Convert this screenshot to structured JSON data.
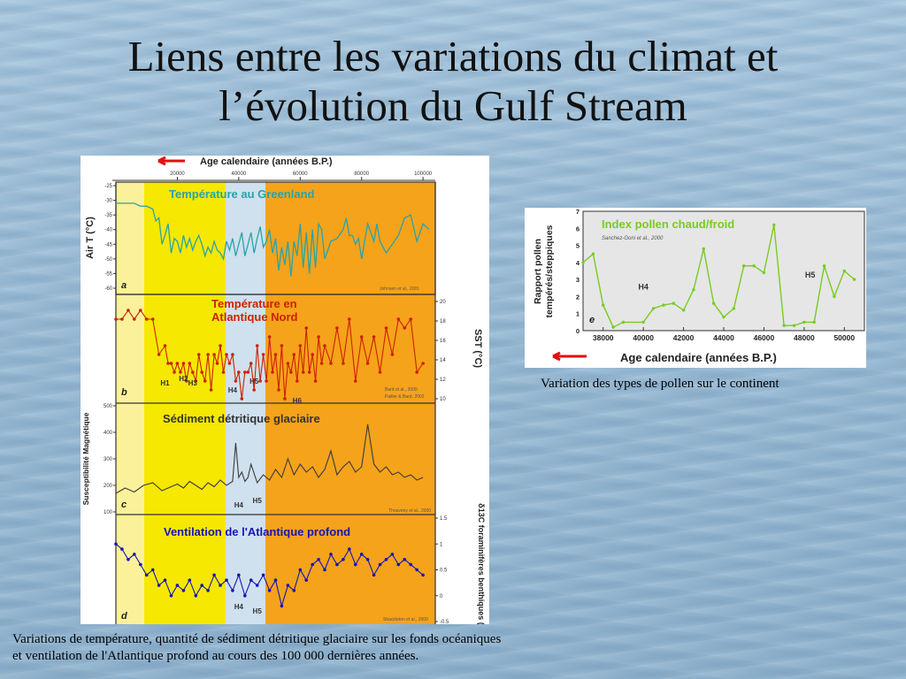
{
  "slide": {
    "title_line1": "Liens entre les variations du climat et",
    "title_line2": "l’évolution du Gulf Stream",
    "caption_pollen": "Variation des types de pollen sur le continent",
    "caption_main_line1": "Variations de température, quantité de sédiment détritique glaciaire sur les fonds océaniques",
    "caption_main_line2": "et ventilation de l'Atlantique profond au cours des 100 000 dernières années."
  },
  "colors": {
    "yellow": "#f6e800",
    "light_yellow": "#fbf19a",
    "blue_band": "#cfe0ee",
    "orange": "#f5a31a",
    "teal": "#2aa3a8",
    "red": "#cc2200",
    "dark": "#3a3a3a",
    "navy": "#1515b5",
    "green": "#77cc22",
    "arrow": "#e01010"
  },
  "chart_data": [
    {
      "type": "line",
      "x_axis_title": "Age calendaire (années B.P.)",
      "x_ticks": [
        "20000",
        "40000",
        "60000",
        "80000",
        "100000"
      ],
      "panels": [
        {
          "id": "a",
          "title": "Température au Greenland",
          "ylabel": "Air T (°C)",
          "yticks": [
            "-25",
            "-30",
            "-35",
            "-40",
            "-45",
            "-50",
            "-55",
            "-60"
          ],
          "ylim": [
            -60,
            -25
          ],
          "ref": "Johnsen et al., 2001",
          "series": {
            "x": [
              0,
              2,
              4,
              6,
              8,
              10,
              12,
              13,
              14,
              15,
              16,
              17,
              18,
              19,
              20,
              21,
              22,
              23,
              24,
              25,
              26,
              27,
              28,
              29,
              30,
              31,
              32,
              33,
              34,
              35,
              36,
              37,
              38,
              39,
              40,
              41,
              42,
              43,
              44,
              45,
              46,
              47,
              48,
              49,
              50,
              51,
              52,
              53,
              54,
              55,
              56,
              57,
              58,
              59,
              60,
              61,
              62,
              63,
              64,
              65,
              66,
              67,
              68,
              70,
              72,
              74,
              75,
              76,
              77,
              78,
              79,
              80,
              82,
              84,
              85,
              86,
              88,
              90,
              92,
              94,
              96,
              98,
              100,
              102
            ],
            "y": [
              -31,
              -31,
              -31,
              -31,
              -32,
              -32,
              -33,
              -37,
              -36,
              -45,
              -42,
              -38,
              -48,
              -43,
              -44,
              -48,
              -42,
              -46,
              -43,
              -47,
              -44,
              -42,
              -45,
              -49,
              -46,
              -48,
              -44,
              -47,
              -48,
              -50,
              -44,
              -47,
              -43,
              -49,
              -45,
              -41,
              -49,
              -45,
              -41,
              -48,
              -43,
              -39,
              -46,
              -44,
              -40,
              -48,
              -43,
              -54,
              -46,
              -52,
              -44,
              -56,
              -44,
              -49,
              -38,
              -53,
              -41,
              -55,
              -40,
              -53,
              -38,
              -40,
              -50,
              -44,
              -43,
              -40,
              -36,
              -42,
              -42,
              -45,
              -43,
              -50,
              -38,
              -44,
              -38,
              -44,
              -48,
              -45,
              -42,
              -36,
              -35,
              -44,
              -38,
              -40
            ]
          }
        },
        {
          "id": "b",
          "title_line1": "Température en",
          "title_line2": "Atlantique Nord",
          "ylabel": "SST (°C)",
          "yticks": [
            "20",
            "18",
            "16",
            "14",
            "12",
            "10"
          ],
          "ylim": [
            9,
            20
          ],
          "ref_line1": "Bard et al., 2000",
          "ref_line2": "Pailler & Bard, 2002",
          "events": [
            "H1",
            "H2",
            "H3",
            "H4",
            "H5",
            "H6"
          ],
          "series": {
            "x": [
              0,
              2,
              4,
              6,
              8,
              10,
              12,
              14,
              16,
              17,
              18,
              19,
              20,
              21,
              22,
              23,
              24,
              25,
              26,
              27,
              28,
              29,
              30,
              31,
              32,
              33,
              34,
              35,
              36,
              37,
              38,
              39,
              40,
              41,
              42,
              43,
              44,
              45,
              46,
              47,
              48,
              49,
              50,
              51,
              52,
              53,
              54,
              55,
              56,
              57,
              58,
              59,
              60,
              61,
              62,
              63,
              64,
              65,
              66,
              67,
              68,
              70,
              72,
              74,
              76,
              78,
              80,
              82,
              84,
              86,
              88,
              90,
              92,
              94,
              96,
              98,
              100
            ],
            "y": [
              18,
              18,
              19,
              18,
              19,
              18,
              18,
              14,
              15,
              13,
              13,
              12,
              13,
              12,
              13,
              11,
              13,
              12,
              11,
              14,
              12,
              11,
              14,
              10,
              14,
              13,
              15,
              12,
              14,
              13,
              14,
              11,
              12,
              9,
              12,
              12,
              13,
              10,
              15,
              11,
              14,
              11,
              16,
              12,
              14,
              10,
              15,
              9,
              13,
              12,
              14,
              11,
              15,
              12,
              17,
              12,
              14,
              11,
              16,
              13,
              15,
              13,
              17,
              13,
              18,
              11,
              16,
              13,
              16,
              12,
              17,
              14,
              18,
              17,
              18,
              12,
              13
            ]
          }
        },
        {
          "id": "c",
          "title": "Sédiment détritique glaciaire",
          "ylabel": "Susceptibilité Magnétique",
          "yticks": [
            "500",
            "400",
            "300",
            "200",
            "100"
          ],
          "ylim": [
            100,
            500
          ],
          "ref": "Thouveny et al., 2000",
          "events": [
            "H4",
            "H5"
          ],
          "series": {
            "x": [
              0,
              3,
              6,
              9,
              12,
              15,
              18,
              20,
              22,
              24,
              26,
              28,
              30,
              32,
              34,
              36,
              38,
              39,
              40,
              41,
              42,
              43,
              44,
              46,
              48,
              50,
              52,
              54,
              56,
              58,
              60,
              62,
              64,
              66,
              68,
              70,
              72,
              74,
              76,
              78,
              80,
              82,
              84,
              86,
              88,
              90,
              92,
              94,
              96,
              98,
              100
            ],
            "y": [
              170,
              190,
              175,
              200,
              210,
              180,
              195,
              205,
              190,
              215,
              200,
              185,
              210,
              195,
              220,
              200,
              215,
              360,
              230,
              250,
              215,
              230,
              280,
              210,
              240,
              220,
              260,
              230,
              300,
              240,
              280,
              250,
              270,
              230,
              260,
              330,
              240,
              270,
              290,
              250,
              270,
              430,
              280,
              250,
              270,
              240,
              250,
              230,
              240,
              220,
              230
            ]
          }
        },
        {
          "id": "d",
          "title": "Ventilation de l'Atlantique profond",
          "ylabel": "δ13C foraminifères benthiques (‰)",
          "yticks": [
            "1.5",
            "1",
            "0.5",
            "0",
            "-0.5"
          ],
          "ylim": [
            -0.5,
            1.5
          ],
          "ref": "Shackleton et al., 2000",
          "events": [
            "H4",
            "H5"
          ],
          "series": {
            "x": [
              0,
              2,
              4,
              6,
              8,
              10,
              12,
              14,
              16,
              18,
              20,
              22,
              24,
              26,
              28,
              30,
              32,
              34,
              36,
              38,
              40,
              42,
              44,
              46,
              48,
              50,
              52,
              54,
              56,
              58,
              60,
              62,
              64,
              66,
              68,
              70,
              72,
              74,
              76,
              78,
              80,
              82,
              84,
              86,
              88,
              90,
              92,
              94,
              96,
              98,
              100
            ],
            "y": [
              1.0,
              0.9,
              0.7,
              0.8,
              0.6,
              0.4,
              0.5,
              0.2,
              0.3,
              0.0,
              0.2,
              0.1,
              0.3,
              0.0,
              0.2,
              0.1,
              0.4,
              0.2,
              0.3,
              0.1,
              0.4,
              0.0,
              0.3,
              0.2,
              0.4,
              0.1,
              0.3,
              -0.2,
              0.2,
              0.1,
              0.5,
              0.3,
              0.6,
              0.7,
              0.5,
              0.8,
              0.6,
              0.7,
              0.9,
              0.6,
              0.8,
              0.7,
              0.4,
              0.6,
              0.7,
              0.8,
              0.6,
              0.7,
              0.6,
              0.5,
              0.4
            ]
          }
        }
      ]
    },
    {
      "type": "line",
      "title": "Index pollen chaud/froid",
      "subtitle": "Sanchez-Goni et al., 2000",
      "xlabel": "Age calendaire  (années B.P.)",
      "ylabel": "Rapport pollen tempérés/steppiques",
      "panel_letter": "e",
      "x": [
        37000,
        37500,
        38000,
        38500,
        39000,
        40000,
        40500,
        41000,
        41500,
        42000,
        42500,
        43000,
        43500,
        44000,
        44500,
        45000,
        45500,
        46000,
        46500,
        47000,
        47500,
        48000,
        48500,
        49000,
        49500,
        50000,
        50500
      ],
      "y": [
        4,
        4.5,
        1.5,
        0.2,
        0.5,
        0.5,
        1.3,
        1.5,
        1.6,
        1.2,
        2.4,
        4.8,
        1.6,
        0.8,
        1.3,
        3.8,
        3.8,
        3.4,
        6.2,
        0.3,
        0.3,
        0.5,
        0.5,
        3.8,
        2.0,
        3.5,
        3.0
      ],
      "xlim": [
        37000,
        51000
      ],
      "ylim": [
        0,
        7
      ],
      "xticks": [
        "38000",
        "40000",
        "42000",
        "44000",
        "46000",
        "48000",
        "50000"
      ],
      "yticks": [
        "0",
        "1",
        "2",
        "3",
        "4",
        "5",
        "6",
        "7"
      ],
      "events": [
        "H4",
        "H5"
      ]
    }
  ]
}
